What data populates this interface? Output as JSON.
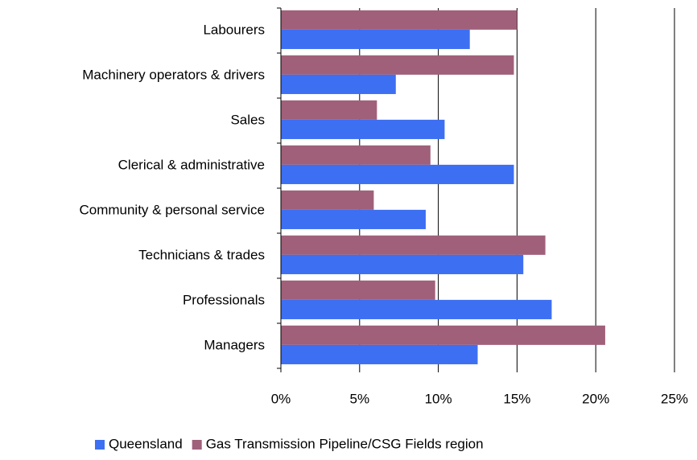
{
  "chart_data": {
    "type": "bar",
    "orientation": "horizontal",
    "categories": [
      "Labourers",
      "Machinery operators & drivers",
      "Sales",
      "Clerical & administrative",
      "Community & personal service",
      "Technicians & trades",
      "Professionals",
      "Managers"
    ],
    "series": [
      {
        "name": "Queensland",
        "color": "#3d6ff2",
        "values": [
          12.0,
          7.3,
          10.4,
          14.8,
          9.2,
          15.4,
          17.2,
          12.5
        ]
      },
      {
        "name": "Gas Transmission Pipeline/CSG Fields region",
        "color": "#a0607a",
        "values": [
          15.0,
          14.8,
          6.1,
          9.5,
          5.9,
          16.8,
          9.8,
          20.6
        ]
      }
    ],
    "xlim": [
      0,
      25
    ],
    "xticks": [
      {
        "value": 0,
        "label": "0%"
      },
      {
        "value": 5,
        "label": "5%"
      },
      {
        "value": 10,
        "label": "10%"
      },
      {
        "value": 15,
        "label": "15%"
      },
      {
        "value": 20,
        "label": "20%"
      },
      {
        "value": 25,
        "label": "25%"
      }
    ],
    "grid": true,
    "legend": "bottom"
  }
}
